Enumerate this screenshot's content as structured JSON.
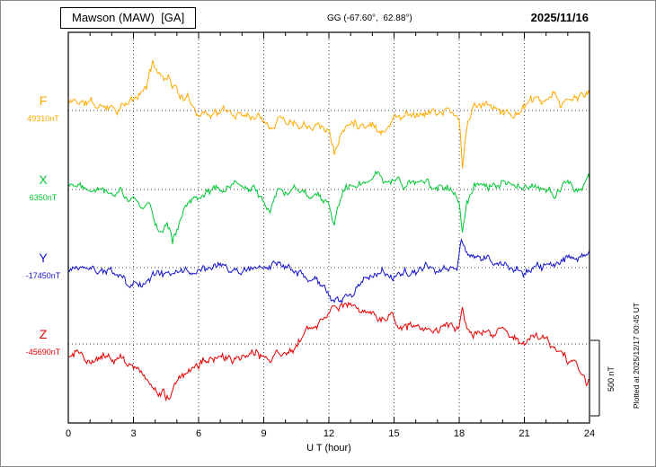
{
  "header": {
    "title": "Mawson (MAW)  [GA]",
    "coordinates": "GG (-67.60°,  62.88°)",
    "date": "2025/11/16"
  },
  "annotations": {
    "scale_bar_label": "500 nT",
    "plotted_at": "Plotted at 2025/12/17 00:45 UT"
  },
  "chart_data": {
    "type": "line",
    "title": "Mawson (MAW) [GA] magnetogram 2025/11/16",
    "x_label": "U T (hour)",
    "x_min": 0,
    "x_max": 24,
    "x_ticks": [
      0,
      3,
      6,
      9,
      12,
      15,
      18,
      21,
      24
    ],
    "y_unit": "nT",
    "scale_reference_nT": 500,
    "grid": "vertical dotted at 3h intervals, dotted horizontal baseline per trace",
    "series": [
      {
        "name": "F",
        "color": "#FFAA00",
        "baseline_value_nT": 49310,
        "baseline_label": "49310nT",
        "seed": 11,
        "noise_med": 42,
        "noise_fine": 26,
        "anchors_offset_nT": [
          [
            0,
            40
          ],
          [
            0.3,
            70
          ],
          [
            0.6,
            50
          ],
          [
            1,
            55
          ],
          [
            1.4,
            15
          ],
          [
            1.8,
            45
          ],
          [
            2.2,
            25
          ],
          [
            2.6,
            35
          ],
          [
            3,
            60
          ],
          [
            3.4,
            110
          ],
          [
            3.7,
            200
          ],
          [
            3.9,
            330
          ],
          [
            4.1,
            270
          ],
          [
            4.35,
            210
          ],
          [
            4.6,
            250
          ],
          [
            4.85,
            170
          ],
          [
            5.1,
            120
          ],
          [
            5.5,
            60
          ],
          [
            6,
            5
          ],
          [
            6.5,
            -15
          ],
          [
            7,
            0
          ],
          [
            7.5,
            -25
          ],
          [
            8,
            -10
          ],
          [
            8.5,
            -25
          ],
          [
            9,
            -35
          ],
          [
            9.4,
            -85
          ],
          [
            9.7,
            -40
          ],
          [
            10,
            -55
          ],
          [
            10.5,
            -65
          ],
          [
            11,
            -75
          ],
          [
            11.5,
            -60
          ],
          [
            12,
            -130
          ],
          [
            12.25,
            -270
          ],
          [
            12.5,
            -180
          ],
          [
            12.8,
            -110
          ],
          [
            13.2,
            -70
          ],
          [
            13.6,
            -80
          ],
          [
            14,
            -70
          ],
          [
            14.4,
            -140
          ],
          [
            14.7,
            -90
          ],
          [
            15,
            -45
          ],
          [
            15.5,
            -25
          ],
          [
            16,
            -10
          ],
          [
            16.5,
            -5
          ],
          [
            17,
            -15
          ],
          [
            17.5,
            -5
          ],
          [
            18,
            -70
          ],
          [
            18.15,
            -355
          ],
          [
            18.35,
            -120
          ],
          [
            18.6,
            15
          ],
          [
            19,
            10
          ],
          [
            19.5,
            30
          ],
          [
            20,
            15
          ],
          [
            20.4,
            -45
          ],
          [
            20.8,
            10
          ],
          [
            21.2,
            40
          ],
          [
            21.6,
            55
          ],
          [
            22,
            35
          ],
          [
            22.4,
            75
          ],
          [
            22.8,
            45
          ],
          [
            23.2,
            60
          ],
          [
            23.6,
            95
          ],
          [
            24,
            110
          ]
        ]
      },
      {
        "name": "X",
        "color": "#00C832",
        "baseline_value_nT": 6350,
        "baseline_label": "6350nT",
        "seed": 22,
        "noise_med": 40,
        "noise_fine": 24,
        "anchors_offset_nT": [
          [
            0,
            35
          ],
          [
            0.4,
            55
          ],
          [
            0.8,
            25
          ],
          [
            1.2,
            40
          ],
          [
            1.6,
            10
          ],
          [
            2,
            5
          ],
          [
            2.4,
            -15
          ],
          [
            2.8,
            -50
          ],
          [
            3.1,
            -90
          ],
          [
            3.4,
            -150
          ],
          [
            3.7,
            -110
          ],
          [
            4,
            -210
          ],
          [
            4.3,
            -270
          ],
          [
            4.55,
            -190
          ],
          [
            4.8,
            -305
          ],
          [
            5.05,
            -255
          ],
          [
            5.3,
            -150
          ],
          [
            5.6,
            -80
          ],
          [
            5.9,
            -30
          ],
          [
            6.3,
            -5
          ],
          [
            6.7,
            10
          ],
          [
            7.1,
            0
          ],
          [
            7.5,
            15
          ],
          [
            8,
            5
          ],
          [
            8.5,
            -10
          ],
          [
            9,
            -65
          ],
          [
            9.3,
            -95
          ],
          [
            9.6,
            -25
          ],
          [
            10,
            0
          ],
          [
            10.5,
            15
          ],
          [
            11,
            -20
          ],
          [
            11.5,
            -5
          ],
          [
            12,
            -85
          ],
          [
            12.25,
            -205
          ],
          [
            12.5,
            -90
          ],
          [
            12.8,
            -10
          ],
          [
            13.2,
            20
          ],
          [
            13.6,
            35
          ],
          [
            14,
            45
          ],
          [
            14.2,
            90
          ],
          [
            14.5,
            40
          ],
          [
            15,
            55
          ],
          [
            15.5,
            30
          ],
          [
            16,
            45
          ],
          [
            16.5,
            30
          ],
          [
            17,
            -5
          ],
          [
            17.4,
            25
          ],
          [
            17.8,
            5
          ],
          [
            18,
            -40
          ],
          [
            18.15,
            -265
          ],
          [
            18.35,
            -60
          ],
          [
            18.7,
            15
          ],
          [
            19.1,
            5
          ],
          [
            19.5,
            0
          ],
          [
            20,
            25
          ],
          [
            20.5,
            10
          ],
          [
            21,
            0
          ],
          [
            21.5,
            25
          ],
          [
            22,
            10
          ],
          [
            22.5,
            -10
          ],
          [
            23,
            25
          ],
          [
            23.4,
            -35
          ],
          [
            23.7,
            -10
          ],
          [
            24,
            55
          ]
        ]
      },
      {
        "name": "Y",
        "color": "#1414CC",
        "baseline_value_nT": -17450,
        "baseline_label": "-17450nT",
        "seed": 33,
        "noise_med": 36,
        "noise_fine": 22,
        "anchors_offset_nT": [
          [
            0,
            -25
          ],
          [
            0.4,
            5
          ],
          [
            0.8,
            -30
          ],
          [
            1.2,
            -10
          ],
          [
            1.6,
            -35
          ],
          [
            2,
            -25
          ],
          [
            2.4,
            -55
          ],
          [
            2.8,
            -135
          ],
          [
            3.1,
            -95
          ],
          [
            3.4,
            -120
          ],
          [
            3.8,
            -55
          ],
          [
            4.2,
            -30
          ],
          [
            4.6,
            -45
          ],
          [
            5,
            -35
          ],
          [
            5.4,
            -15
          ],
          [
            5.8,
            -30
          ],
          [
            6.2,
            -5
          ],
          [
            6.6,
            -25
          ],
          [
            7,
            -5
          ],
          [
            7.4,
            -30
          ],
          [
            7.8,
            -20
          ],
          [
            8.2,
            -5
          ],
          [
            8.6,
            5
          ],
          [
            9,
            10
          ],
          [
            9.5,
            0
          ],
          [
            10,
            -15
          ],
          [
            10.5,
            -45
          ],
          [
            11,
            -85
          ],
          [
            11.5,
            -125
          ],
          [
            12,
            -185
          ],
          [
            12.4,
            -230
          ],
          [
            12.8,
            -205
          ],
          [
            13.2,
            -145
          ],
          [
            13.6,
            -85
          ],
          [
            14,
            -45
          ],
          [
            14.5,
            -30
          ],
          [
            15,
            -45
          ],
          [
            15.5,
            -20
          ],
          [
            16,
            -35
          ],
          [
            16.5,
            -20
          ],
          [
            17,
            -35
          ],
          [
            17.5,
            -15
          ],
          [
            17.9,
            -5
          ],
          [
            18.1,
            200
          ],
          [
            18.3,
            105
          ],
          [
            18.5,
            60
          ],
          [
            19,
            30
          ],
          [
            19.4,
            55
          ],
          [
            19.8,
            10
          ],
          [
            20.2,
            25
          ],
          [
            20.6,
            -15
          ],
          [
            21,
            -25
          ],
          [
            21.4,
            10
          ],
          [
            21.8,
            -5
          ],
          [
            22.2,
            15
          ],
          [
            22.6,
            40
          ],
          [
            23,
            60
          ],
          [
            23.4,
            80
          ],
          [
            23.8,
            105
          ],
          [
            24,
            120
          ]
        ]
      },
      {
        "name": "Z",
        "color": "#E60000",
        "baseline_value_nT": -45690,
        "baseline_label": "-45690nT",
        "seed": 44,
        "noise_med": 40,
        "noise_fine": 24,
        "anchors_offset_nT": [
          [
            0,
            -90
          ],
          [
            0.4,
            -60
          ],
          [
            0.8,
            -105
          ],
          [
            1.2,
            -125
          ],
          [
            1.6,
            -85
          ],
          [
            2,
            -115
          ],
          [
            2.4,
            -95
          ],
          [
            2.8,
            -140
          ],
          [
            3.2,
            -180
          ],
          [
            3.6,
            -240
          ],
          [
            3.85,
            -300
          ],
          [
            4.1,
            -340
          ],
          [
            4.35,
            -280
          ],
          [
            4.6,
            -355
          ],
          [
            4.85,
            -310
          ],
          [
            5.1,
            -250
          ],
          [
            5.5,
            -170
          ],
          [
            5.9,
            -125
          ],
          [
            6.3,
            -105
          ],
          [
            6.7,
            -115
          ],
          [
            7.1,
            -95
          ],
          [
            7.5,
            -105
          ],
          [
            7.9,
            -95
          ],
          [
            8.3,
            -70
          ],
          [
            8.7,
            -35
          ],
          [
            9,
            -80
          ],
          [
            9.3,
            -120
          ],
          [
            9.6,
            -70
          ],
          [
            10,
            -35
          ],
          [
            10.4,
            -5
          ],
          [
            10.8,
            50
          ],
          [
            11.2,
            100
          ],
          [
            11.6,
            150
          ],
          [
            12,
            220
          ],
          [
            12.4,
            285
          ],
          [
            12.7,
            255
          ],
          [
            13,
            265
          ],
          [
            13.4,
            225
          ],
          [
            13.8,
            205
          ],
          [
            14.2,
            185
          ],
          [
            14.6,
            175
          ],
          [
            14.9,
            210
          ],
          [
            15.2,
            160
          ],
          [
            15.6,
            130
          ],
          [
            16,
            105
          ],
          [
            16.4,
            95
          ],
          [
            16.8,
            85
          ],
          [
            17.2,
            90
          ],
          [
            17.6,
            95
          ],
          [
            18,
            110
          ],
          [
            18.15,
            270
          ],
          [
            18.35,
            135
          ],
          [
            18.7,
            95
          ],
          [
            19.1,
            75
          ],
          [
            19.5,
            60
          ],
          [
            19.9,
            80
          ],
          [
            20.3,
            45
          ],
          [
            20.7,
            35
          ],
          [
            21.1,
            30
          ],
          [
            21.5,
            45
          ],
          [
            21.9,
            15
          ],
          [
            22.3,
            -5
          ],
          [
            22.7,
            -30
          ],
          [
            23.1,
            -110
          ],
          [
            23.4,
            -160
          ],
          [
            23.7,
            -210
          ],
          [
            23.9,
            -290
          ],
          [
            24,
            -255
          ]
        ]
      }
    ]
  }
}
